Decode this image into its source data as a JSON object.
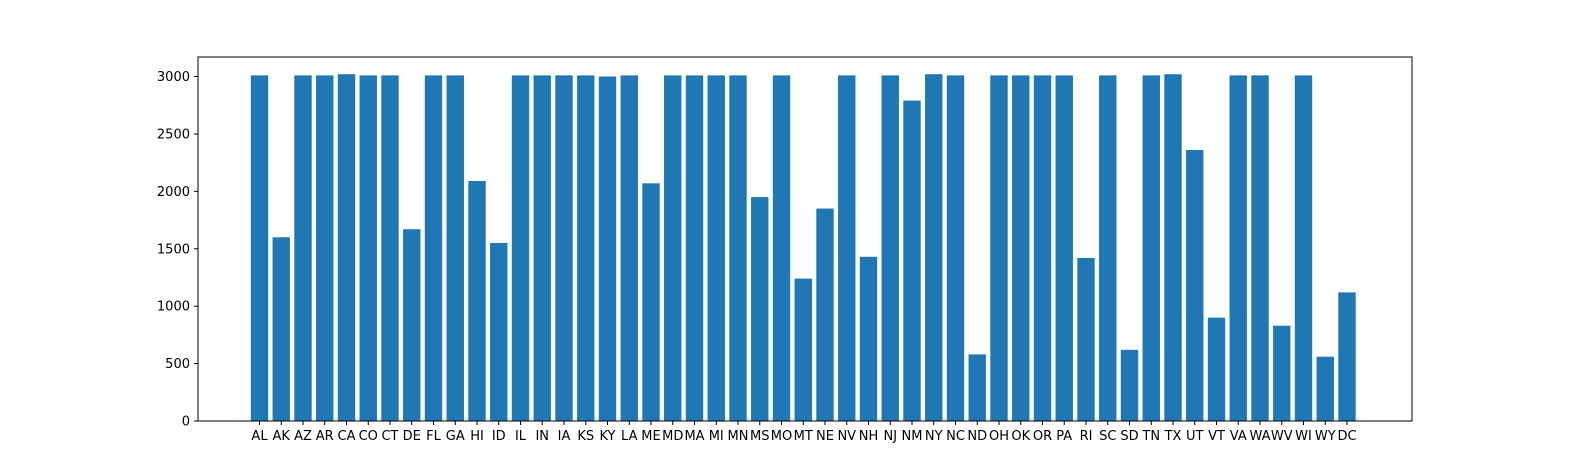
{
  "chart_data": {
    "type": "bar",
    "title": "",
    "xlabel": "",
    "ylabel": "",
    "categories": [
      "AL",
      "AK",
      "AZ",
      "AR",
      "CA",
      "CO",
      "CT",
      "DE",
      "FL",
      "GA",
      "HI",
      "ID",
      "IL",
      "IN",
      "IA",
      "KS",
      "KY",
      "LA",
      "ME",
      "MD",
      "MA",
      "MI",
      "MN",
      "MS",
      "MO",
      "MT",
      "NE",
      "NV",
      "NH",
      "NJ",
      "NM",
      "NY",
      "NC",
      "ND",
      "OH",
      "OK",
      "OR",
      "PA",
      "RI",
      "SC",
      "SD",
      "TN",
      "TX",
      "UT",
      "VT",
      "VA",
      "WA",
      "WV",
      "WI",
      "WY",
      "DC"
    ],
    "values": [
      3010,
      1600,
      3010,
      3010,
      3020,
      3010,
      3010,
      1670,
      3010,
      3010,
      2090,
      1550,
      3010,
      3010,
      3010,
      3010,
      3000,
      3010,
      2070,
      3010,
      3010,
      3010,
      3010,
      1950,
      3010,
      1240,
      1850,
      3010,
      1430,
      3010,
      2790,
      3020,
      3010,
      580,
      3010,
      3010,
      3010,
      3010,
      1420,
      3010,
      620,
      3010,
      3020,
      2360,
      900,
      3010,
      3010,
      830,
      3010,
      560,
      1120
    ],
    "ylim": [
      0,
      3170
    ],
    "yticks": [
      0,
      500,
      1000,
      1500,
      2000,
      2500,
      3000
    ],
    "grid": false,
    "bar_color": "#1f77b4",
    "axis_color": "#000000"
  }
}
